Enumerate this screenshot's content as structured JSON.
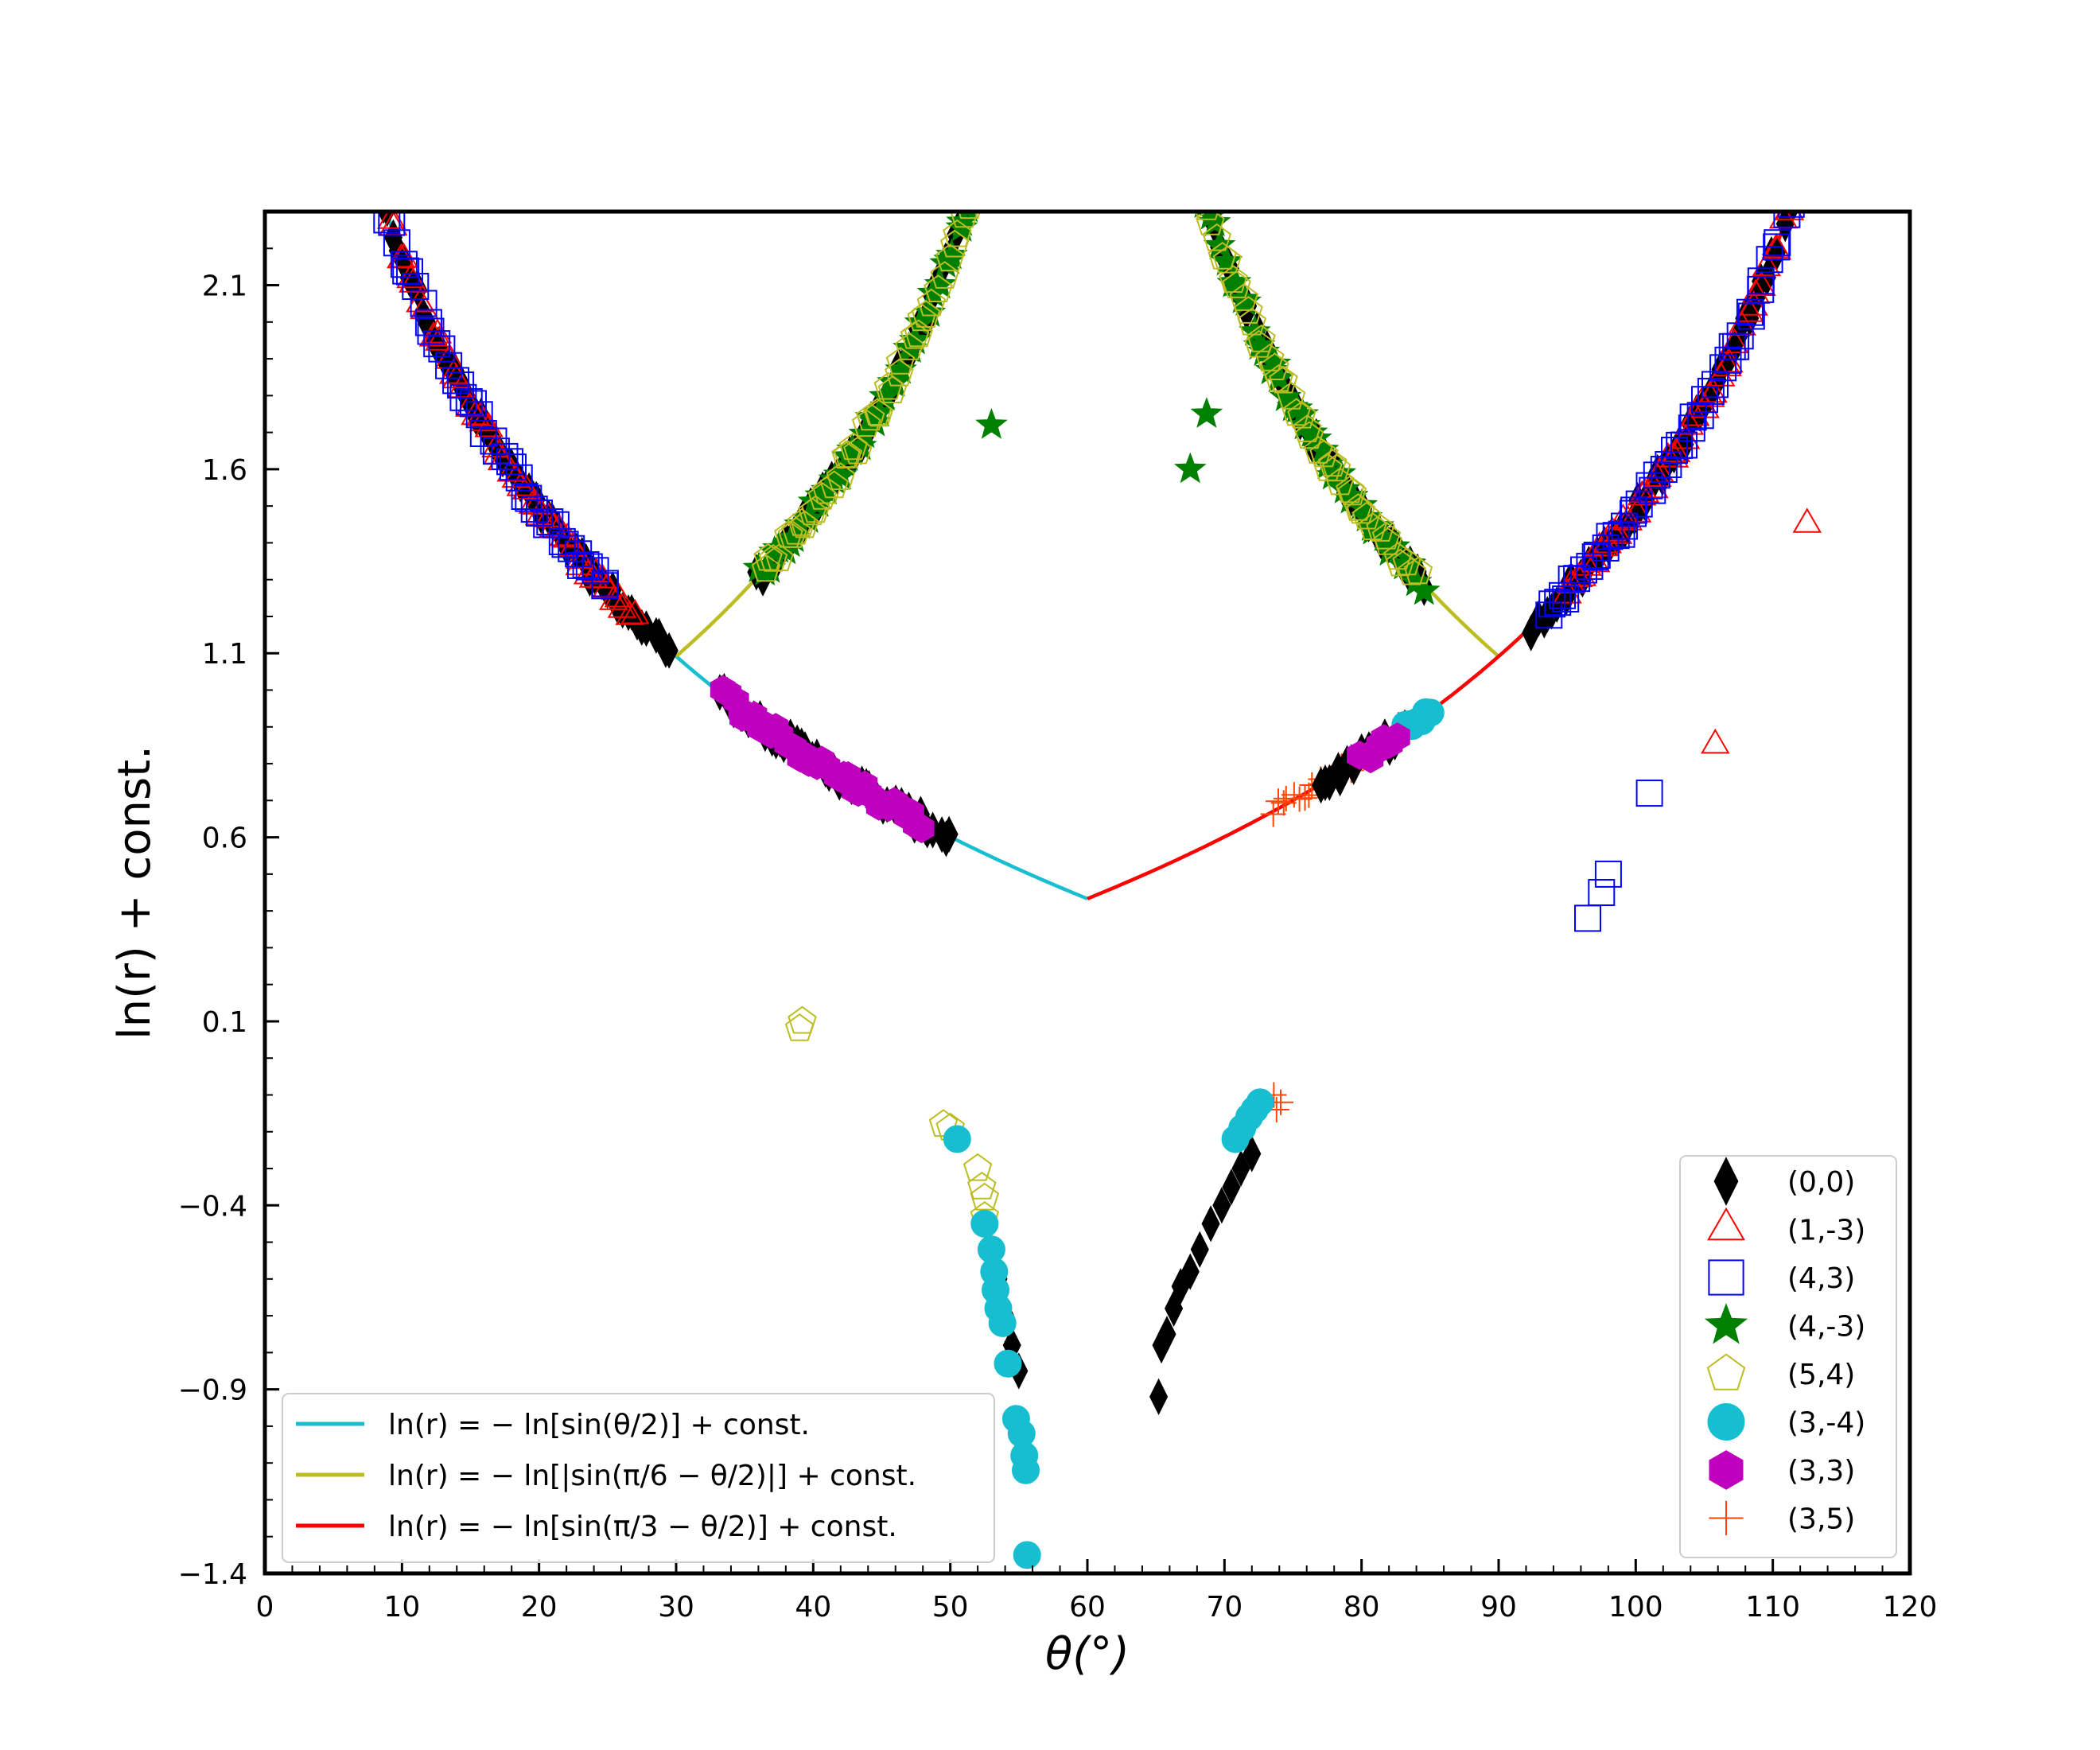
{
  "chart_data": {
    "type": "scatter",
    "title": "",
    "xlabel": "θ(°)",
    "ylabel": "ln(r) + const.",
    "xlim": [
      0,
      120
    ],
    "ylim": [
      -1.4,
      2.3
    ],
    "x_ticks": [
      0,
      10,
      20,
      30,
      40,
      50,
      60,
      70,
      80,
      90,
      100,
      110,
      120
    ],
    "x_tick_labels": [
      "0",
      "10",
      "20",
      "30",
      "40",
      "50",
      "60",
      "70",
      "80",
      "90",
      "100",
      "110",
      "120"
    ],
    "y_ticks": [
      -1.4,
      -0.9,
      -0.4,
      0.1,
      0.6,
      1.1,
      1.6,
      2.1
    ],
    "y_tick_labels": [
      "−1.4",
      "−0.9",
      "−0.4",
      "0.1",
      "0.6",
      "1.1",
      "1.6",
      "2.1"
    ],
    "fit_curves": [
      {
        "name": "cyan_fit",
        "label": "ln(r) = − ln[sin(θ/2)] + const.",
        "color": "#17becf",
        "formula": "sin_half",
        "x_range": [
          4,
          60
        ]
      },
      {
        "name": "olive_fit_left",
        "label": "ln(r) = − ln[|sin(π/6 − θ/2)|] + const.",
        "color": "#bcbd22",
        "formula": "abs_sin_pi6",
        "x_range": [
          30,
          56.5
        ]
      },
      {
        "name": "olive_fit_right",
        "label": "",
        "color": "#bcbd22",
        "formula": "abs_sin_pi6",
        "x_range": [
          63.5,
          90
        ]
      },
      {
        "name": "red_fit",
        "label": "ln(r) = − ln[sin(π/3 − θ/2)] + const.",
        "color": "#ff0000",
        "formula": "sin_pi3",
        "x_range": [
          60,
          116
        ]
      }
    ],
    "fit_constant": -0.26,
    "fit_legend_position": "lower-left",
    "series_legend_position": "lower-right",
    "series": [
      {
        "name": "(0,0)",
        "marker": "diamond",
        "color": "#000000",
        "filled": true,
        "segments": [
          {
            "x": [
              7,
              29.5
            ],
            "fn": "sin_half"
          },
          {
            "x": [
              36,
              55
            ],
            "fn": "abs_sin_pi6"
          },
          {
            "x": [
              65,
              84.5
            ],
            "fn": "abs_sin_pi6"
          },
          {
            "x": [
              92.5,
              115
            ],
            "fn": "sin_pi3"
          },
          {
            "x": [
              33,
              50
            ],
            "fn": "sin_half"
          },
          {
            "x": [
              77,
              83
            ],
            "fn": "sin_pi3"
          }
        ],
        "points": [
          [
            53.5,
            -0.6
          ],
          [
            54.0,
            -0.7
          ],
          [
            54.5,
            -0.78
          ],
          [
            55.0,
            -0.85
          ],
          [
            65.2,
            -0.92
          ],
          [
            65.4,
            -0.78
          ],
          [
            65.8,
            -0.75
          ],
          [
            66.3,
            -0.68
          ],
          [
            66.8,
            -0.62
          ],
          [
            67.5,
            -0.58
          ],
          [
            68.2,
            -0.52
          ],
          [
            69.0,
            -0.45
          ],
          [
            69.8,
            -0.4
          ],
          [
            70.5,
            -0.35
          ],
          [
            71.2,
            -0.3
          ],
          [
            72.0,
            -0.26
          ]
        ]
      },
      {
        "name": "(1,-3)",
        "marker": "triangle",
        "color": "#ff0000",
        "filled": false,
        "segments": [
          {
            "x": [
              4.5,
              27
            ],
            "fn": "sin_half"
          },
          {
            "x": [
              95,
              115.5
            ],
            "fn": "sin_pi3"
          }
        ],
        "points": [
          [
            105.8,
            0.85
          ],
          [
            112.5,
            1.45
          ]
        ]
      },
      {
        "name": "(4,3)",
        "marker": "square",
        "color": "#0000ff",
        "filled": false,
        "segments": [
          {
            "x": [
              4.2,
              25
            ],
            "fn": "sin_half"
          },
          {
            "x": [
              93.5,
              115.5
            ],
            "fn": "sin_pi3"
          }
        ],
        "points": [
          [
            96.5,
            0.38
          ],
          [
            97.5,
            0.45
          ],
          [
            98,
            0.5
          ],
          [
            101,
            0.72
          ]
        ]
      },
      {
        "name": "(4,-3)",
        "marker": "star",
        "color": "#008000",
        "filled": true,
        "segments": [
          {
            "x": [
              36,
              54.5
            ],
            "fn": "abs_sin_pi6"
          },
          {
            "x": [
              65.5,
              84.5
            ],
            "fn": "abs_sin_pi6"
          }
        ],
        "points": [
          [
            68.7,
            1.75
          ],
          [
            53,
            1.72
          ],
          [
            67.5,
            1.6
          ]
        ]
      },
      {
        "name": "(5,4)",
        "marker": "pentagon",
        "color": "#bcbd22",
        "filled": false,
        "segments": [
          {
            "x": [
              36.5,
              54.5
            ],
            "fn": "abs_sin_pi6"
          },
          {
            "x": [
              65.5,
              84
            ],
            "fn": "abs_sin_pi6"
          }
        ],
        "points": [
          [
            39,
            0.08
          ],
          [
            39.2,
            0.1
          ],
          [
            49.5,
            -0.18
          ],
          [
            50,
            -0.19
          ],
          [
            52,
            -0.3
          ],
          [
            52.3,
            -0.35
          ],
          [
            52.5,
            -0.38
          ],
          [
            52.5,
            -0.43
          ]
        ]
      },
      {
        "name": "(3,-4)",
        "marker": "circle",
        "color": "#17becf",
        "filled": true,
        "segments": [
          {
            "x": [
              83,
              85
            ],
            "fn": "sin_pi3"
          }
        ],
        "points": [
          [
            50.5,
            -0.22
          ],
          [
            52.5,
            -0.45
          ],
          [
            53,
            -0.52
          ],
          [
            53.2,
            -0.58
          ],
          [
            53.3,
            -0.63
          ],
          [
            53.5,
            -0.68
          ],
          [
            53.8,
            -0.72
          ],
          [
            54.2,
            -0.83
          ],
          [
            54.8,
            -0.98
          ],
          [
            55.2,
            -1.02
          ],
          [
            55.4,
            -1.08
          ],
          [
            55.5,
            -1.12
          ],
          [
            55.6,
            -1.35
          ],
          [
            70.8,
            -0.22
          ],
          [
            71.3,
            -0.19
          ],
          [
            71.8,
            -0.16
          ],
          [
            72.2,
            -0.14
          ],
          [
            72.6,
            -0.12
          ]
        ]
      },
      {
        "name": "(3,3)",
        "marker": "hexagon",
        "color": "#bf00bf",
        "filled": true,
        "segments": [
          {
            "x": [
              33.5,
              48
            ],
            "fn": "sin_half"
          },
          {
            "x": [
              80,
              82.5
            ],
            "fn": "sin_pi3"
          }
        ],
        "points": []
      },
      {
        "name": "(3,5)",
        "marker": "plus",
        "color": "#ff4500",
        "filled": false,
        "segments": [
          {
            "x": [
              73.5,
              79.5
            ],
            "fn": "sin_pi3"
          }
        ],
        "points": [
          [
            73.8,
            -0.14
          ],
          [
            74.1,
            -0.12
          ],
          [
            73.6,
            -0.1
          ]
        ]
      }
    ]
  }
}
